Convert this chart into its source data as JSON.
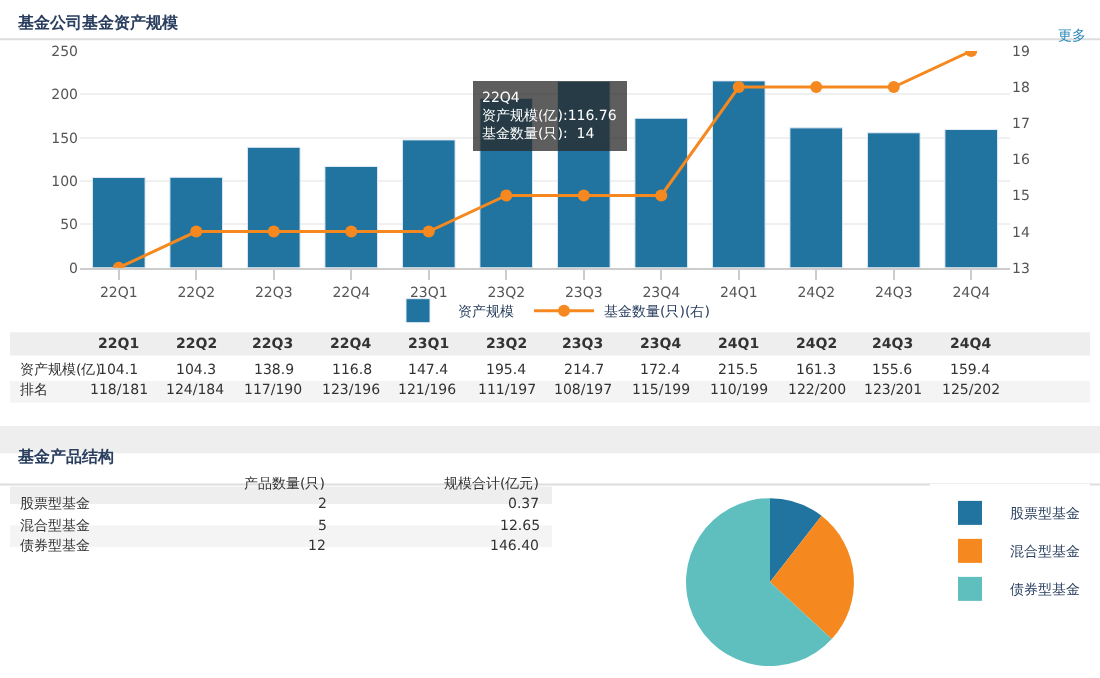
{
  "chart_data": [
    {
      "type": "bar",
      "title": "基金公司基金资产规模",
      "categories": [
        "22Q1",
        "22Q2",
        "22Q3",
        "22Q4",
        "23Q1",
        "23Q2",
        "23Q3",
        "23Q4",
        "24Q1",
        "24Q2",
        "24Q3",
        "24Q4"
      ],
      "series": [
        {
          "name": "资产规模",
          "color": "#21749f",
          "values": [
            104.1,
            104.3,
            138.9,
            116.8,
            147.4,
            195.4,
            214.7,
            172.4,
            215.5,
            161.3,
            155.6,
            159.4
          ],
          "value_labels": [
            "104.1",
            "104.3",
            "138.9",
            "116.8",
            "147.4",
            "195.4",
            "214.7",
            "172.4",
            "215.5",
            "161.3",
            "155.6",
            "159.4"
          ]
        },
        {
          "name": "基金数量(只)(右)",
          "type": "line",
          "axis": "y2",
          "color": "#f5891f",
          "values": [
            13,
            14,
            14,
            14,
            14,
            15,
            15,
            15,
            18,
            18,
            18,
            19
          ]
        }
      ],
      "ylim": [
        0,
        250
      ],
      "yticks": [
        0,
        50,
        100,
        150,
        200,
        250
      ],
      "y2lim": [
        13,
        19
      ],
      "y2ticks": [
        13,
        14,
        15,
        16,
        17,
        18,
        19
      ],
      "grid": "y",
      "legend": "bottom",
      "marker": "circle",
      "annotations": [
        "更多",
        "22Q4\n资产规模(亿):116.76\n基金数量(只):  14",
        "资产规模(亿)",
        "排名",
        "118/181",
        "124/184",
        "117/190",
        "123/196",
        "121/196",
        "111/197",
        "108/197",
        "115/199",
        "110/199",
        "122/200",
        "123/201",
        "125/202"
      ]
    },
    {
      "type": "pie",
      "categories": [
        "股票型基金",
        "混合型基金",
        "债券型基金"
      ],
      "values": [
        10.53,
        26.32,
        63.16
      ],
      "colors": [
        "#21749f",
        "#f5891f",
        "#5fbfbf"
      ],
      "legend": "right",
      "annotations": [
        "基金产品结构",
        "产品数量(只)",
        "规模合计(亿元)",
        "2",
        "5",
        "12",
        "0.37",
        "12.65",
        "146.40"
      ]
    }
  ]
}
